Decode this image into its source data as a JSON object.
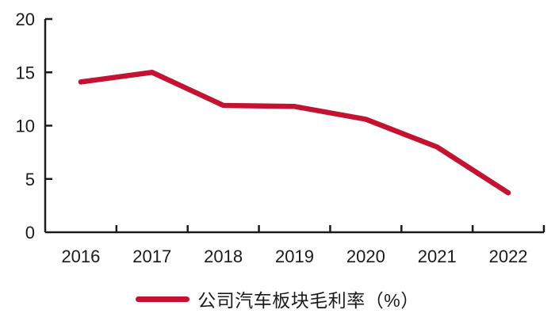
{
  "chart_data": {
    "type": "line",
    "title": "",
    "categories": [
      "2016",
      "2017",
      "2018",
      "2019",
      "2020",
      "2021",
      "2022"
    ],
    "series": [
      {
        "name": "公司汽车板块毛利率（%）",
        "values": [
          14.1,
          15.0,
          11.9,
          11.8,
          10.6,
          8.0,
          3.7
        ]
      }
    ],
    "xlabel": "",
    "ylabel": "",
    "ylim": [
      0,
      20
    ],
    "yticks": [
      0,
      5,
      10,
      15,
      20
    ],
    "grid": false,
    "legend_position": "bottom",
    "colors": {
      "line": "#c41231",
      "axis": "#1a1a1a",
      "text": "#1a1a1a",
      "background": "#ffffff"
    }
  }
}
